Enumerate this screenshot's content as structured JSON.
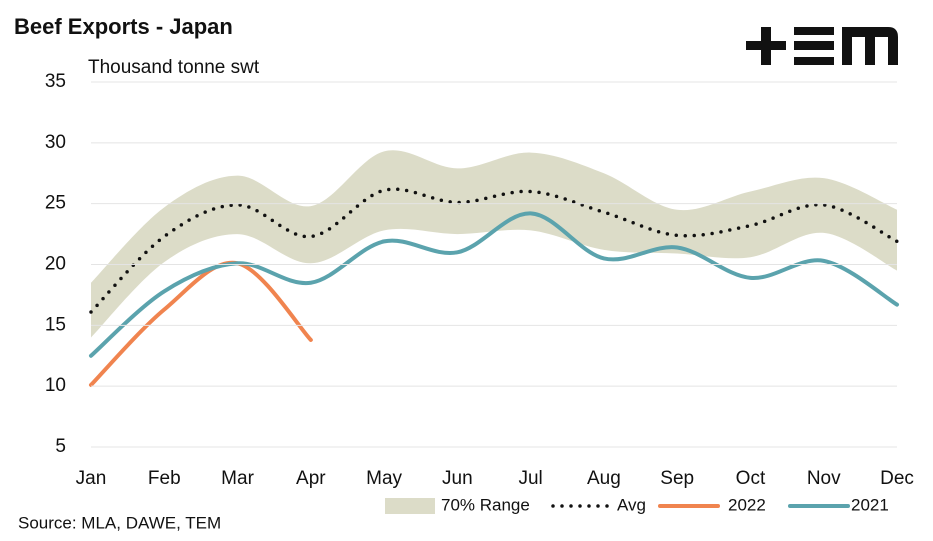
{
  "chart_data": {
    "type": "line",
    "title": "Beef Exports - Japan",
    "subtitle": "Thousand tonne swt",
    "source": "Source: MLA, DAWE, TEM",
    "categories": [
      "Jan",
      "Feb",
      "Mar",
      "Apr",
      "May",
      "Jun",
      "Jul",
      "Aug",
      "Sep",
      "Oct",
      "Nov",
      "Dec"
    ],
    "range": {
      "name": "70% Range",
      "color": "#dcdcc8",
      "upper": [
        18.5,
        24.7,
        27.3,
        24.8,
        29.3,
        27.9,
        29.2,
        27.5,
        24.5,
        26.0,
        27.1,
        24.5
      ],
      "lower": [
        14.0,
        20.2,
        22.5,
        20.1,
        22.8,
        22.5,
        22.8,
        21.2,
        20.9,
        20.6,
        22.6,
        19.5
      ]
    },
    "series": [
      {
        "name": "Avg",
        "color": "#111111",
        "dotted": true,
        "values": [
          16.1,
          22.3,
          24.9,
          22.3,
          26.1,
          25.1,
          26.0,
          24.3,
          22.4,
          23.2,
          24.9,
          21.9
        ]
      },
      {
        "name": "2022",
        "color": "#f0844f",
        "values": [
          10.1,
          16.3,
          20.1,
          13.8,
          null,
          null,
          null,
          null,
          null,
          null,
          null,
          null
        ]
      },
      {
        "name": "2021",
        "color": "#5ba3ad",
        "values": [
          12.5,
          17.8,
          20.1,
          18.5,
          21.9,
          21.0,
          24.2,
          20.5,
          21.4,
          18.9,
          20.3,
          16.7
        ]
      }
    ],
    "ylim": [
      5,
      35
    ],
    "yticks": [
      5,
      10,
      15,
      20,
      25,
      30,
      35
    ],
    "grid": true
  }
}
